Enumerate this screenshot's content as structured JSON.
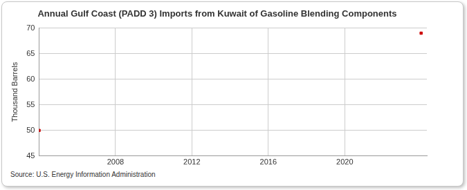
{
  "chart_data": {
    "type": "scatter",
    "title": "Annual Gulf Coast (PADD 3) Imports from Kuwait of Gasoline Blending Components",
    "y_label": "Thousand Barrels",
    "source": "Source: U.S. Energy Information Administration",
    "x": [
      2004,
      2024
    ],
    "values": [
      50,
      69
    ],
    "color": "#cc0000",
    "marker": "square",
    "xlim": [
      2004,
      2024.3
    ],
    "xticks": [
      2008,
      2012,
      2016,
      2020
    ],
    "ylim": [
      45,
      70
    ],
    "yticks": [
      45,
      50,
      55,
      60,
      65,
      70
    ],
    "grid": true
  }
}
